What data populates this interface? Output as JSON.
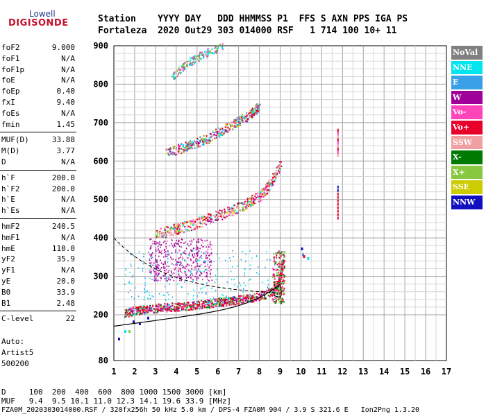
{
  "logo": {
    "top": "Lowell",
    "bottom": "DIGISONDE"
  },
  "header": {
    "line1": "Station    YYYY DAY   DDD HHMMSS P1  FFS S AXN PPS IGA PS",
    "line2": "Fortaleza  2020 Out29 303 014000 RSF   1 714 100 10+ 11"
  },
  "params": [
    {
      "label": "foF2",
      "value": "9.000"
    },
    {
      "label": "foF1",
      "value": "N/A"
    },
    {
      "label": "foF1p",
      "value": "N/A"
    },
    {
      "label": "foE",
      "value": "N/A"
    },
    {
      "label": "foEp",
      "value": "0.40"
    },
    {
      "label": "fxI",
      "value": "9.40"
    },
    {
      "label": "foEs",
      "value": "N/A"
    },
    {
      "label": "fmin",
      "value": "1.45"
    },
    {
      "label": "MUF(D)",
      "value": "33.88"
    },
    {
      "label": "M(D)",
      "value": "3.77"
    },
    {
      "label": "D",
      "value": "N/A"
    },
    {
      "label": "h`F",
      "value": "200.0"
    },
    {
      "label": "h`F2",
      "value": "200.0"
    },
    {
      "label": "h`E",
      "value": "N/A"
    },
    {
      "label": "h`Es",
      "value": "N/A"
    },
    {
      "label": "hmF2",
      "value": "240.5"
    },
    {
      "label": "hmF1",
      "value": "N/A"
    },
    {
      "label": "hmE",
      "value": "110.0"
    },
    {
      "label": "yF2",
      "value": "35.9"
    },
    {
      "label": "yF1",
      "value": "N/A"
    },
    {
      "label": "yE",
      "value": "20.0"
    },
    {
      "label": "B0",
      "value": "33.9"
    },
    {
      "label": "B1",
      "value": "2.48"
    },
    {
      "label": "C-level",
      "value": "22"
    }
  ],
  "auto": {
    "line1": "Auto:",
    "line2": "Artist5",
    "line3": "500200"
  },
  "legend": [
    {
      "label": "NoVal",
      "color": "#808080"
    },
    {
      "label": "NNE",
      "color": "#00e5ee"
    },
    {
      "label": "E",
      "color": "#3aa0e8"
    },
    {
      "label": "W",
      "color": "#a0009a"
    },
    {
      "label": "Vo-",
      "color": "#ff44bb"
    },
    {
      "label": "Vo+",
      "color": "#e8002a"
    },
    {
      "label": "SSW",
      "color": "#f0a0a0"
    },
    {
      "label": "X-",
      "color": "#007a00"
    },
    {
      "label": "X+",
      "color": "#88c840"
    },
    {
      "label": "SSE",
      "color": "#cccc00"
    },
    {
      "label": "NNW",
      "color": "#1010c0"
    }
  ],
  "footer": {
    "line1": "D     100  200  400  600  800 1000 1500 3000 [km]",
    "line2": "MUF   9.4  9.5 10.1 11.0 12.3 14.1 19.6 33.9 [MHz]",
    "line3": "FZA0M_2020303014000.RSF / 320fx256h 50 kHz 5.0 km / DPS-4 FZA0M 904 / 3.9 S 321.6 E   Ion2Png 1.3.20"
  },
  "chart_data": {
    "type": "scatter",
    "title": "",
    "xlabel": "",
    "ylabel": "",
    "xlim": [
      1,
      17
    ],
    "ylim": [
      80,
      900
    ],
    "xticks": [
      1,
      2,
      3,
      4,
      5,
      6,
      7,
      8,
      9,
      10,
      11,
      12,
      13,
      14,
      15,
      16,
      17
    ],
    "yticks": [
      80,
      200,
      300,
      400,
      500,
      600,
      700,
      800,
      900
    ],
    "grid": true,
    "legend_position": "right",
    "series": [
      {
        "name": "Vo+",
        "color": "#e8002a",
        "points": [
          [
            1.5,
            205
          ],
          [
            2,
            212
          ],
          [
            2.5,
            215
          ],
          [
            3,
            218
          ],
          [
            3.5,
            220
          ],
          [
            4,
            222
          ],
          [
            4.5,
            224
          ],
          [
            5,
            227
          ],
          [
            5.5,
            230
          ],
          [
            6,
            233
          ],
          [
            6.5,
            236
          ],
          [
            7,
            240
          ],
          [
            7.5,
            244
          ],
          [
            8,
            250
          ],
          [
            8.5,
            258
          ],
          [
            8.8,
            270
          ],
          [
            9,
            300
          ],
          [
            9.1,
            340
          ]
        ]
      },
      {
        "name": "Vo+ 2F",
        "color": "#e8002a",
        "points": [
          [
            3,
            410
          ],
          [
            4,
            425
          ],
          [
            5,
            440
          ],
          [
            6,
            460
          ],
          [
            7,
            480
          ],
          [
            8,
            510
          ],
          [
            8.5,
            540
          ],
          [
            9,
            590
          ]
        ]
      },
      {
        "name": "Vo+ 3F",
        "color": "#e8002a",
        "points": [
          [
            3.5,
            620
          ],
          [
            4.5,
            640
          ],
          [
            5.5,
            660
          ],
          [
            6.5,
            690
          ],
          [
            7.5,
            720
          ],
          [
            8,
            745
          ]
        ]
      },
      {
        "name": "W",
        "color": "#a0009a",
        "points": [
          [
            3,
            320
          ],
          [
            3.5,
            330
          ],
          [
            4,
            340
          ],
          [
            4.5,
            345
          ],
          [
            5,
            335
          ],
          [
            5.5,
            330
          ]
        ]
      }
    ]
  }
}
